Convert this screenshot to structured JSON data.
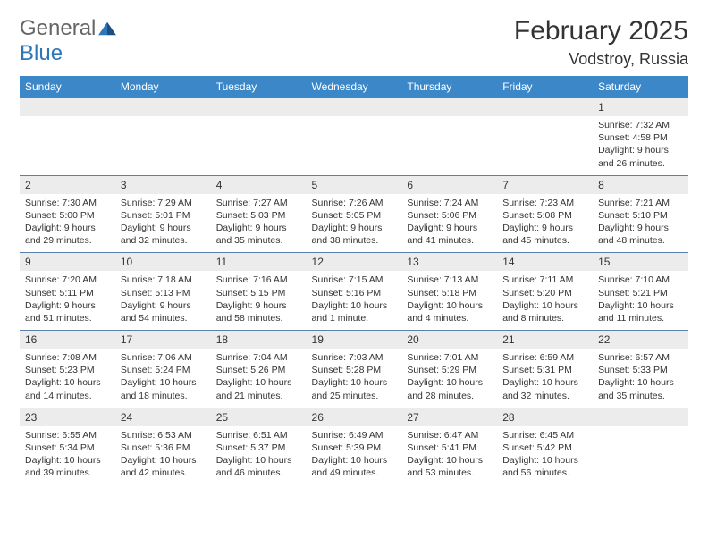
{
  "brand": {
    "part1": "General",
    "part2": "Blue"
  },
  "title": "February 2025",
  "location": "Vodstroy, Russia",
  "colors": {
    "header_bg": "#3b87c8",
    "header_text": "#ffffff",
    "row_divider": "#5b7fa8",
    "daynum_bg": "#ececec",
    "text": "#333333",
    "brand_gray": "#666666",
    "brand_blue": "#2f76b8",
    "background": "#ffffff"
  },
  "fonts": {
    "title_size": 30,
    "location_size": 18,
    "header_size": 12,
    "body_size": 10.5
  },
  "day_headers": [
    "Sunday",
    "Monday",
    "Tuesday",
    "Wednesday",
    "Thursday",
    "Friday",
    "Saturday"
  ],
  "weeks": [
    [
      null,
      null,
      null,
      null,
      null,
      null,
      {
        "n": "1",
        "sunrise": "7:32 AM",
        "sunset": "4:58 PM",
        "dl": "9 hours and 26 minutes."
      }
    ],
    [
      {
        "n": "2",
        "sunrise": "7:30 AM",
        "sunset": "5:00 PM",
        "dl": "9 hours and 29 minutes."
      },
      {
        "n": "3",
        "sunrise": "7:29 AM",
        "sunset": "5:01 PM",
        "dl": "9 hours and 32 minutes."
      },
      {
        "n": "4",
        "sunrise": "7:27 AM",
        "sunset": "5:03 PM",
        "dl": "9 hours and 35 minutes."
      },
      {
        "n": "5",
        "sunrise": "7:26 AM",
        "sunset": "5:05 PM",
        "dl": "9 hours and 38 minutes."
      },
      {
        "n": "6",
        "sunrise": "7:24 AM",
        "sunset": "5:06 PM",
        "dl": "9 hours and 41 minutes."
      },
      {
        "n": "7",
        "sunrise": "7:23 AM",
        "sunset": "5:08 PM",
        "dl": "9 hours and 45 minutes."
      },
      {
        "n": "8",
        "sunrise": "7:21 AM",
        "sunset": "5:10 PM",
        "dl": "9 hours and 48 minutes."
      }
    ],
    [
      {
        "n": "9",
        "sunrise": "7:20 AM",
        "sunset": "5:11 PM",
        "dl": "9 hours and 51 minutes."
      },
      {
        "n": "10",
        "sunrise": "7:18 AM",
        "sunset": "5:13 PM",
        "dl": "9 hours and 54 minutes."
      },
      {
        "n": "11",
        "sunrise": "7:16 AM",
        "sunset": "5:15 PM",
        "dl": "9 hours and 58 minutes."
      },
      {
        "n": "12",
        "sunrise": "7:15 AM",
        "sunset": "5:16 PM",
        "dl": "10 hours and 1 minute."
      },
      {
        "n": "13",
        "sunrise": "7:13 AM",
        "sunset": "5:18 PM",
        "dl": "10 hours and 4 minutes."
      },
      {
        "n": "14",
        "sunrise": "7:11 AM",
        "sunset": "5:20 PM",
        "dl": "10 hours and 8 minutes."
      },
      {
        "n": "15",
        "sunrise": "7:10 AM",
        "sunset": "5:21 PM",
        "dl": "10 hours and 11 minutes."
      }
    ],
    [
      {
        "n": "16",
        "sunrise": "7:08 AM",
        "sunset": "5:23 PM",
        "dl": "10 hours and 14 minutes."
      },
      {
        "n": "17",
        "sunrise": "7:06 AM",
        "sunset": "5:24 PM",
        "dl": "10 hours and 18 minutes."
      },
      {
        "n": "18",
        "sunrise": "7:04 AM",
        "sunset": "5:26 PM",
        "dl": "10 hours and 21 minutes."
      },
      {
        "n": "19",
        "sunrise": "7:03 AM",
        "sunset": "5:28 PM",
        "dl": "10 hours and 25 minutes."
      },
      {
        "n": "20",
        "sunrise": "7:01 AM",
        "sunset": "5:29 PM",
        "dl": "10 hours and 28 minutes."
      },
      {
        "n": "21",
        "sunrise": "6:59 AM",
        "sunset": "5:31 PM",
        "dl": "10 hours and 32 minutes."
      },
      {
        "n": "22",
        "sunrise": "6:57 AM",
        "sunset": "5:33 PM",
        "dl": "10 hours and 35 minutes."
      }
    ],
    [
      {
        "n": "23",
        "sunrise": "6:55 AM",
        "sunset": "5:34 PM",
        "dl": "10 hours and 39 minutes."
      },
      {
        "n": "24",
        "sunrise": "6:53 AM",
        "sunset": "5:36 PM",
        "dl": "10 hours and 42 minutes."
      },
      {
        "n": "25",
        "sunrise": "6:51 AM",
        "sunset": "5:37 PM",
        "dl": "10 hours and 46 minutes."
      },
      {
        "n": "26",
        "sunrise": "6:49 AM",
        "sunset": "5:39 PM",
        "dl": "10 hours and 49 minutes."
      },
      {
        "n": "27",
        "sunrise": "6:47 AM",
        "sunset": "5:41 PM",
        "dl": "10 hours and 53 minutes."
      },
      {
        "n": "28",
        "sunrise": "6:45 AM",
        "sunset": "5:42 PM",
        "dl": "10 hours and 56 minutes."
      },
      null
    ]
  ],
  "labels": {
    "sunrise": "Sunrise:",
    "sunset": "Sunset:",
    "daylight": "Daylight:"
  }
}
